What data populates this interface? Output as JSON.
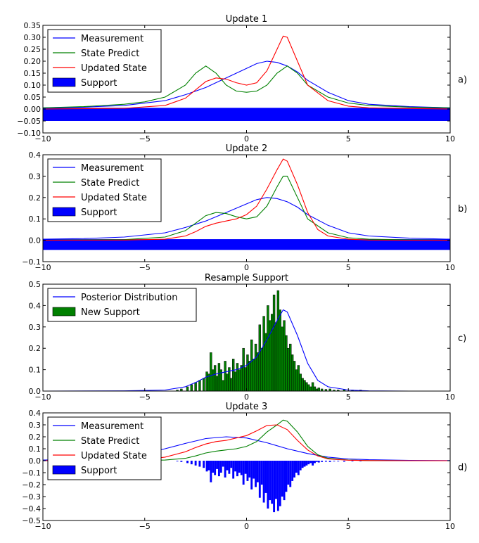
{
  "chart_data": [
    {
      "type": "line",
      "title": "Update 1",
      "side_label": "a)",
      "xlim": [
        -10,
        10
      ],
      "ylim": [
        -0.1,
        0.35
      ],
      "xticks": [
        -10,
        -5,
        0,
        5,
        10
      ],
      "xtick_labels": [
        "−10",
        "−5",
        "0",
        "5",
        "10"
      ],
      "yticks": [
        -0.1,
        -0.05,
        0.0,
        0.05,
        0.1,
        0.15,
        0.2,
        0.25,
        0.3,
        0.35
      ],
      "ytick_labels": [
        "−0.10",
        "−0.05",
        "0.00",
        "0.05",
        "0.10",
        "0.15",
        "0.20",
        "0.25",
        "0.30",
        "0.35"
      ],
      "legend": [
        {
          "label": "Measurement",
          "color": "#0000ff",
          "kind": "line"
        },
        {
          "label": "State Predict",
          "color": "#008000",
          "kind": "line"
        },
        {
          "label": "Updated State",
          "color": "#ff0000",
          "kind": "line"
        },
        {
          "label": "Support",
          "color": "#0000ff",
          "kind": "patch"
        }
      ],
      "series": [
        {
          "name": "Measurement",
          "color": "#0000ff",
          "x": [
            -10,
            -8,
            -6,
            -4,
            -3,
            -2,
            -1,
            0,
            0.5,
            1,
            1.5,
            2,
            2.5,
            3,
            4,
            5,
            6,
            8,
            10
          ],
          "y": [
            0.005,
            0.008,
            0.015,
            0.035,
            0.06,
            0.09,
            0.13,
            0.17,
            0.19,
            0.2,
            0.195,
            0.18,
            0.155,
            0.12,
            0.07,
            0.035,
            0.02,
            0.01,
            0.005
          ]
        },
        {
          "name": "State Predict",
          "color": "#008000",
          "x": [
            -10,
            -8,
            -6,
            -5,
            -4,
            -3,
            -2.5,
            -2,
            -1.5,
            -1,
            -0.5,
            0,
            0.5,
            1,
            1.5,
            2,
            2.5,
            3,
            4,
            5,
            6,
            8,
            10
          ],
          "y": [
            0.005,
            0.01,
            0.02,
            0.03,
            0.05,
            0.1,
            0.15,
            0.18,
            0.15,
            0.1,
            0.075,
            0.07,
            0.075,
            0.1,
            0.15,
            0.18,
            0.15,
            0.1,
            0.05,
            0.025,
            0.015,
            0.008,
            0.005
          ]
        },
        {
          "name": "Updated State",
          "color": "#ff0000",
          "x": [
            -10,
            -6,
            -4,
            -3,
            -2.5,
            -2,
            -1.5,
            -1,
            -0.5,
            0,
            0.5,
            1,
            1.5,
            1.8,
            2,
            2.5,
            3,
            4,
            5,
            6,
            8,
            10
          ],
          "y": [
            0,
            0.003,
            0.015,
            0.045,
            0.08,
            0.115,
            0.13,
            0.125,
            0.11,
            0.1,
            0.11,
            0.16,
            0.25,
            0.305,
            0.3,
            0.2,
            0.1,
            0.035,
            0.012,
            0.005,
            0.002,
            0
          ]
        }
      ],
      "support_band": {
        "x_from": -10,
        "x_to": 10,
        "y_from": -0.05,
        "y_to": 0.005,
        "color": "#0000ff"
      }
    },
    {
      "type": "line",
      "title": "Update 2",
      "side_label": "b)",
      "xlim": [
        -10,
        10
      ],
      "ylim": [
        -0.1,
        0.4
      ],
      "xticks": [
        -10,
        -5,
        0,
        5,
        10
      ],
      "xtick_labels": [
        "−10",
        "−5",
        "0",
        "5",
        "10"
      ],
      "yticks": [
        -0.1,
        0.0,
        0.1,
        0.2,
        0.3,
        0.4
      ],
      "ytick_labels": [
        "−0.1",
        "0.0",
        "0.1",
        "0.2",
        "0.3",
        "0.4"
      ],
      "legend": [
        {
          "label": "Measurement",
          "color": "#0000ff",
          "kind": "line"
        },
        {
          "label": "State Predict",
          "color": "#008000",
          "kind": "line"
        },
        {
          "label": "Updated State",
          "color": "#ff0000",
          "kind": "line"
        },
        {
          "label": "Support",
          "color": "#0000ff",
          "kind": "patch"
        }
      ],
      "series": [
        {
          "name": "Measurement",
          "color": "#0000ff",
          "x": [
            -10,
            -8,
            -6,
            -4,
            -3,
            -2,
            -1,
            0,
            0.5,
            1,
            1.5,
            2,
            2.5,
            3,
            4,
            5,
            6,
            8,
            10
          ],
          "y": [
            0.005,
            0.008,
            0.015,
            0.035,
            0.06,
            0.09,
            0.13,
            0.17,
            0.19,
            0.2,
            0.195,
            0.18,
            0.155,
            0.12,
            0.07,
            0.035,
            0.02,
            0.01,
            0.005
          ]
        },
        {
          "name": "State Predict",
          "color": "#008000",
          "x": [
            -10,
            -6,
            -4,
            -3,
            -2.5,
            -2,
            -1.5,
            -1,
            -0.5,
            0,
            0.5,
            1,
            1.5,
            1.8,
            2,
            2.5,
            3,
            4,
            5,
            6,
            8,
            10
          ],
          "y": [
            0,
            0.003,
            0.015,
            0.045,
            0.08,
            0.115,
            0.13,
            0.125,
            0.11,
            0.1,
            0.11,
            0.16,
            0.25,
            0.3,
            0.3,
            0.2,
            0.1,
            0.035,
            0.012,
            0.005,
            0.002,
            0
          ]
        },
        {
          "name": "Updated State",
          "color": "#ff0000",
          "x": [
            -10,
            -6,
            -4,
            -3,
            -2.5,
            -2,
            -1.5,
            -1,
            -0.5,
            0,
            0.5,
            1,
            1.5,
            1.8,
            2,
            2.5,
            3,
            3.5,
            4,
            5,
            6,
            8,
            10
          ],
          "y": [
            0,
            0.001,
            0.005,
            0.02,
            0.04,
            0.065,
            0.08,
            0.09,
            0.1,
            0.12,
            0.16,
            0.24,
            0.33,
            0.38,
            0.37,
            0.26,
            0.13,
            0.05,
            0.02,
            0.005,
            0.001,
            0,
            0
          ]
        }
      ],
      "support_band": {
        "x_from": -10,
        "x_to": 10,
        "y_from": -0.045,
        "y_to": 0.005,
        "color": "#0000ff"
      }
    },
    {
      "type": "bar",
      "title": "Resample Support",
      "side_label": "c)",
      "xlim": [
        -10,
        10
      ],
      "ylim": [
        0.0,
        0.5
      ],
      "xticks": [
        -10,
        -5,
        0,
        5,
        10
      ],
      "xtick_labels": [
        "−10",
        "−5",
        "0",
        "5",
        "10"
      ],
      "yticks": [
        0.0,
        0.1,
        0.2,
        0.3,
        0.4,
        0.5
      ],
      "ytick_labels": [
        "0.0",
        "0.1",
        "0.2",
        "0.3",
        "0.4",
        "0.5"
      ],
      "legend": [
        {
          "label": "Posterior Distribution",
          "color": "#0000ff",
          "kind": "line"
        },
        {
          "label": "New Support",
          "color": "#008000",
          "kind": "patch"
        }
      ],
      "series": [
        {
          "name": "Posterior Distribution",
          "color": "#0000ff",
          "x": [
            -10,
            -6,
            -4,
            -3,
            -2.5,
            -2,
            -1.5,
            -1,
            -0.5,
            0,
            0.5,
            1,
            1.5,
            1.8,
            2,
            2.5,
            3,
            3.5,
            4,
            5,
            6,
            8,
            10
          ],
          "y": [
            0,
            0.001,
            0.005,
            0.02,
            0.04,
            0.065,
            0.08,
            0.09,
            0.1,
            0.12,
            0.16,
            0.24,
            0.33,
            0.38,
            0.37,
            0.26,
            0.13,
            0.05,
            0.02,
            0.005,
            0.001,
            0,
            0
          ]
        }
      ],
      "bars": {
        "name": "New Support",
        "color": "#008000",
        "x": [
          -3.4,
          -3.2,
          -2.9,
          -2.7,
          -2.5,
          -2.3,
          -2.1,
          -1.95,
          -1.85,
          -1.75,
          -1.65,
          -1.55,
          -1.45,
          -1.35,
          -1.25,
          -1.15,
          -1.05,
          -0.95,
          -0.85,
          -0.75,
          -0.65,
          -0.55,
          -0.45,
          -0.35,
          -0.25,
          -0.15,
          -0.05,
          0.05,
          0.15,
          0.25,
          0.35,
          0.45,
          0.55,
          0.65,
          0.75,
          0.85,
          0.95,
          1.05,
          1.15,
          1.25,
          1.35,
          1.45,
          1.55,
          1.65,
          1.75,
          1.85,
          1.95,
          2.05,
          2.15,
          2.25,
          2.35,
          2.45,
          2.55,
          2.65,
          2.75,
          2.85,
          2.95,
          3.05,
          3.15,
          3.25,
          3.35,
          3.45,
          3.55,
          3.7,
          3.9,
          4.1,
          4.3,
          4.5,
          4.8,
          5.2,
          5.6
        ],
        "values": [
          0.005,
          0.01,
          0.02,
          0.03,
          0.04,
          0.05,
          0.06,
          0.09,
          0.08,
          0.18,
          0.1,
          0.12,
          0.07,
          0.13,
          0.1,
          0.05,
          0.14,
          0.08,
          0.11,
          0.06,
          0.15,
          0.09,
          0.13,
          0.1,
          0.12,
          0.2,
          0.11,
          0.17,
          0.14,
          0.24,
          0.15,
          0.22,
          0.18,
          0.31,
          0.2,
          0.35,
          0.27,
          0.4,
          0.33,
          0.36,
          0.45,
          0.32,
          0.47,
          0.38,
          0.3,
          0.33,
          0.26,
          0.2,
          0.22,
          0.17,
          0.14,
          0.1,
          0.12,
          0.08,
          0.06,
          0.05,
          0.04,
          0.03,
          0.02,
          0.04,
          0.02,
          0.01,
          0.015,
          0.01,
          0.008,
          0.01,
          0.005,
          0.005,
          0.008,
          0.005,
          0.005
        ]
      }
    },
    {
      "type": "line",
      "title": "Update 3",
      "side_label": "d)",
      "xlim": [
        -10,
        10
      ],
      "ylim": [
        -0.5,
        0.4
      ],
      "xticks": [
        -10,
        -5,
        0,
        5,
        10
      ],
      "xtick_labels": [
        "−10",
        "−5",
        "0",
        "5",
        "10"
      ],
      "yticks": [
        -0.5,
        -0.4,
        -0.3,
        -0.2,
        -0.1,
        0.0,
        0.1,
        0.2,
        0.3,
        0.4
      ],
      "ytick_labels": [
        "−0.5",
        "−0.4",
        "−0.3",
        "−0.2",
        "−0.1",
        "0.0",
        "0.1",
        "0.2",
        "0.3",
        "0.4"
      ],
      "legend": [
        {
          "label": "Measurement",
          "color": "#0000ff",
          "kind": "line"
        },
        {
          "label": "State Predict",
          "color": "#008000",
          "kind": "line"
        },
        {
          "label": "Updated State",
          "color": "#ff0000",
          "kind": "line"
        },
        {
          "label": "Support",
          "color": "#0000ff",
          "kind": "patch"
        }
      ],
      "series": [
        {
          "name": "Measurement",
          "color": "#0000ff",
          "x": [
            -10,
            -8,
            -6,
            -5,
            -4,
            -3,
            -2,
            -1,
            0,
            1,
            2,
            3,
            4,
            5,
            6,
            8,
            10
          ],
          "y": [
            0.005,
            0.012,
            0.035,
            0.06,
            0.1,
            0.145,
            0.185,
            0.2,
            0.19,
            0.15,
            0.1,
            0.06,
            0.03,
            0.015,
            0.008,
            0.003,
            0.001
          ]
        },
        {
          "name": "State Predict",
          "color": "#008000",
          "x": [
            -10,
            -6,
            -4,
            -3,
            -2.5,
            -2,
            -1.5,
            -1,
            -0.5,
            0,
            0.5,
            1,
            1.5,
            1.8,
            2,
            2.5,
            3,
            3.5,
            4,
            5,
            6,
            8,
            10
          ],
          "y": [
            0,
            0.001,
            0.005,
            0.02,
            0.04,
            0.065,
            0.08,
            0.09,
            0.1,
            0.12,
            0.16,
            0.24,
            0.3,
            0.34,
            0.33,
            0.24,
            0.12,
            0.05,
            0.02,
            0.005,
            0.001,
            0,
            0
          ]
        },
        {
          "name": "Updated State",
          "color": "#ff0000",
          "x": [
            -10,
            -6,
            -5,
            -4,
            -3,
            -2.5,
            -2,
            -1.5,
            -1,
            -0.5,
            0,
            0.5,
            1,
            1.5,
            2,
            2.5,
            3,
            3.5,
            4,
            5,
            6,
            8,
            10
          ],
          "y": [
            0,
            0.002,
            0.01,
            0.03,
            0.075,
            0.11,
            0.14,
            0.16,
            0.17,
            0.19,
            0.21,
            0.25,
            0.295,
            0.3,
            0.26,
            0.17,
            0.09,
            0.04,
            0.015,
            0.004,
            0.001,
            0,
            0
          ]
        }
      ],
      "neg_bars": {
        "name": "Support",
        "color": "#0000ff",
        "x": [
          -3.4,
          -3.2,
          -2.9,
          -2.7,
          -2.5,
          -2.3,
          -2.1,
          -1.95,
          -1.85,
          -1.75,
          -1.65,
          -1.55,
          -1.45,
          -1.35,
          -1.25,
          -1.15,
          -1.05,
          -0.95,
          -0.85,
          -0.75,
          -0.65,
          -0.55,
          -0.45,
          -0.35,
          -0.25,
          -0.15,
          -0.05,
          0.05,
          0.15,
          0.25,
          0.35,
          0.45,
          0.55,
          0.65,
          0.75,
          0.85,
          0.95,
          1.05,
          1.15,
          1.25,
          1.35,
          1.45,
          1.55,
          1.65,
          1.75,
          1.85,
          1.95,
          2.05,
          2.15,
          2.25,
          2.35,
          2.45,
          2.55,
          2.65,
          2.75,
          2.85,
          2.95,
          3.05,
          3.15,
          3.25,
          3.35,
          3.45,
          3.55,
          3.7,
          3.9,
          4.1,
          4.3,
          4.5,
          4.8,
          5.2,
          5.6
        ],
        "values": [
          0.005,
          0.01,
          0.02,
          0.03,
          0.04,
          0.05,
          0.06,
          0.09,
          0.08,
          0.18,
          0.1,
          0.12,
          0.07,
          0.13,
          0.1,
          0.05,
          0.14,
          0.08,
          0.11,
          0.06,
          0.15,
          0.09,
          0.13,
          0.1,
          0.12,
          0.2,
          0.11,
          0.17,
          0.14,
          0.24,
          0.15,
          0.22,
          0.18,
          0.31,
          0.2,
          0.35,
          0.27,
          0.4,
          0.33,
          0.36,
          0.43,
          0.32,
          0.42,
          0.38,
          0.3,
          0.33,
          0.26,
          0.2,
          0.22,
          0.17,
          0.14,
          0.1,
          0.12,
          0.08,
          0.06,
          0.05,
          0.04,
          0.03,
          0.02,
          0.04,
          0.02,
          0.01,
          0.015,
          0.01,
          0.008,
          0.01,
          0.005,
          0.005,
          0.008,
          0.005,
          0.005
        ]
      }
    }
  ]
}
